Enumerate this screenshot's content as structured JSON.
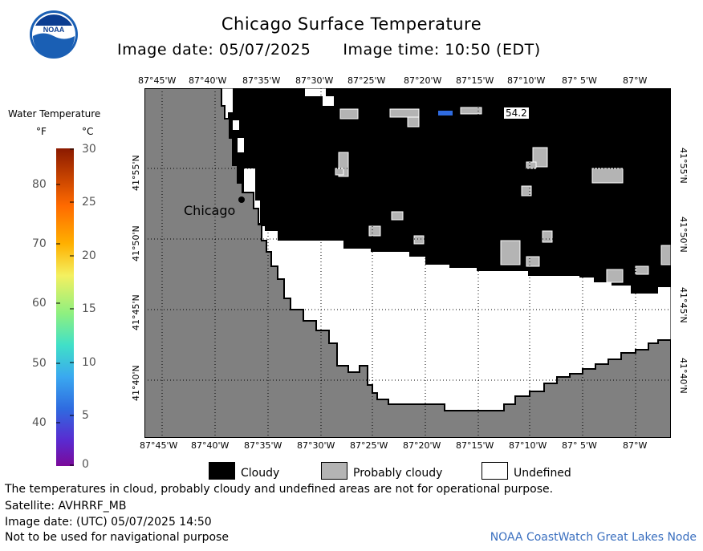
{
  "header": {
    "title": "Chicago Surface Temperature",
    "image_date": "Image date: 05/07/2025",
    "image_time": "Image time: 10:50 (EDT)"
  },
  "logo": {
    "text": "NOAA",
    "icon": "noaa-logo-icon"
  },
  "map": {
    "lon_labels": [
      "87°45'W",
      "87°40'W",
      "87°35'W",
      "87°30'W",
      "87°25'W",
      "87°20'W",
      "87°15'W",
      "87°10'W",
      "87° 5'W",
      "87°W"
    ],
    "lat_labels": [
      "41°55'N",
      "41°50'N",
      "41°45'N",
      "41°40'N"
    ],
    "city_label": "Chicago",
    "temp_label": "54.2",
    "colors": {
      "land": "#808080",
      "cloudy": "#000000",
      "probably_cloudy": "#b4b4b4",
      "undefined": "#ffffff",
      "water_temp": "#2f6be0"
    }
  },
  "legend": {
    "title": "Water Temperature",
    "unit_f": "°F",
    "unit_c": "°C",
    "ticks_f": [
      "80",
      "70",
      "60",
      "50",
      "40"
    ],
    "ticks_c": [
      "30",
      "25",
      "20",
      "15",
      "10",
      "5",
      "0"
    ],
    "key": [
      {
        "label": "Cloudy",
        "color": "#000000"
      },
      {
        "label": "Probably cloudy",
        "color": "#b4b4b4"
      },
      {
        "label": "Undefined",
        "color": "#ffffff"
      }
    ]
  },
  "footer": {
    "disclaimer": "The temperatures in cloud, probably cloudy and undefined areas are not for operational purpose.",
    "satellite": "Satellite: AVHRRF_MB",
    "image_date_utc": "Image date: (UTC) 05/07/2025  14:50",
    "navigation": "Not to be used for navigational purpose",
    "credit": "NOAA CoastWatch Great Lakes Node"
  }
}
